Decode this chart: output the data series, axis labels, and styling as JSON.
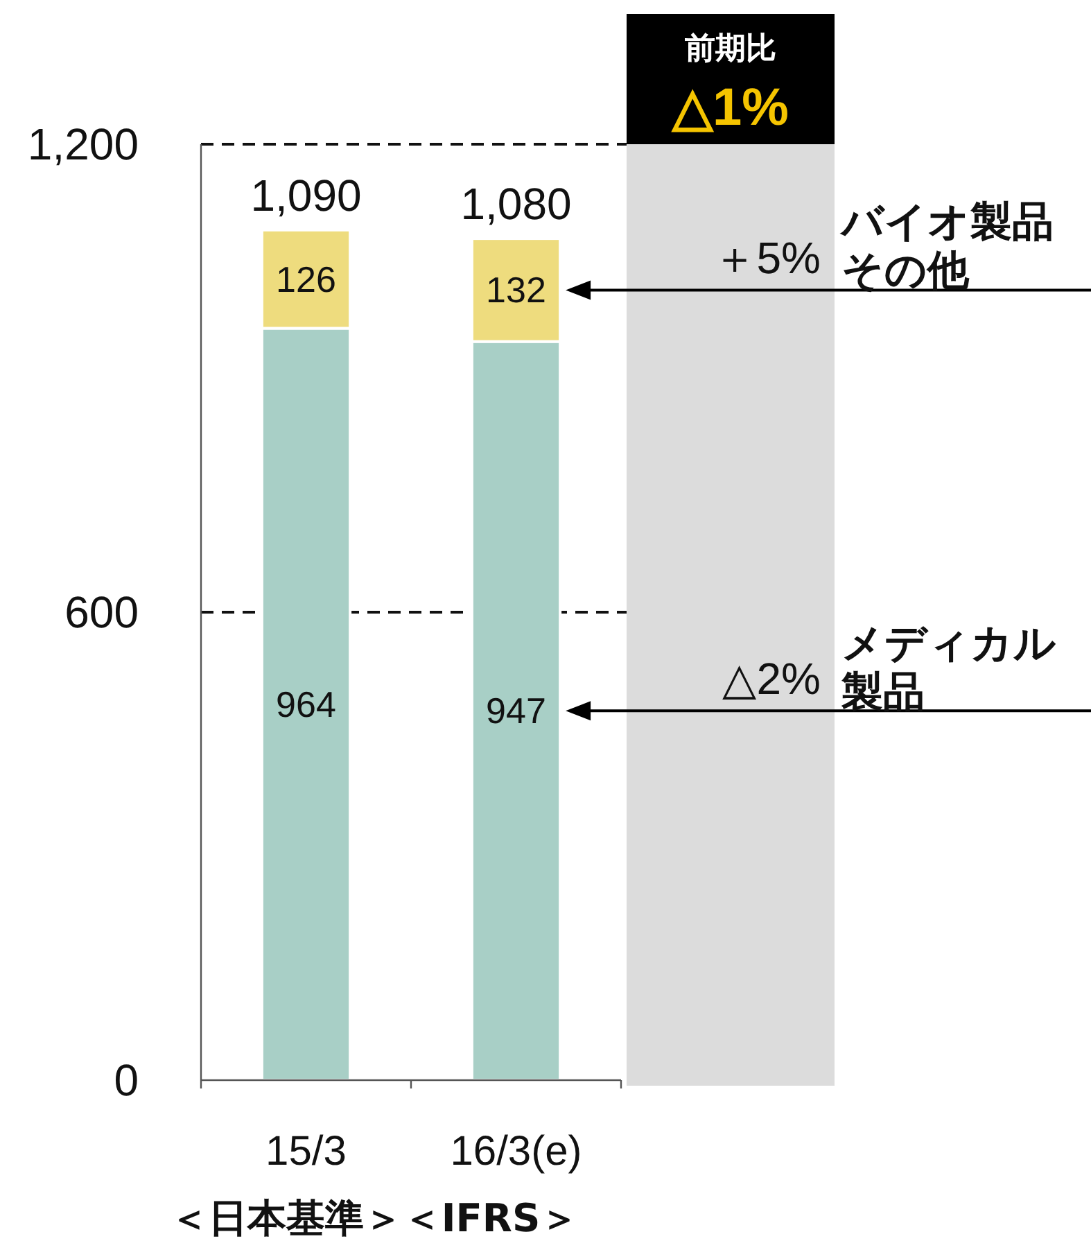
{
  "chart_data": {
    "type": "bar",
    "stacked": true,
    "categories": [
      "15/3",
      "16/3(e)"
    ],
    "series": [
      {
        "name": "メディカル製品",
        "color": "#a8cfc6",
        "values": [
          964,
          947
        ]
      },
      {
        "name": "バイオ製品その他",
        "color": "#eedc7e",
        "values": [
          126,
          132
        ]
      }
    ],
    "totals": [
      "1,090",
      "1,080"
    ],
    "data_labels": true,
    "grid": "y",
    "ylim": [
      0,
      1200
    ],
    "yticks": [
      0,
      600,
      {
        "value": 1200,
        "label": "1,200"
      }
    ],
    "annotations": [
      "前期比",
      "△1%",
      "＋5%",
      "△2%",
      "＜日本基準＞＜IFRS＞"
    ]
  }
}
